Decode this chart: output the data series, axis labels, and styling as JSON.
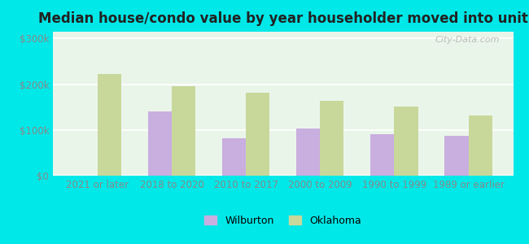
{
  "title": "Median house/condo value by year householder moved into unit",
  "categories": [
    "2021 or later",
    "2018 to 2020",
    "2010 to 2017",
    "2000 to 2009",
    "1990 to 1999",
    "1989 or earlier"
  ],
  "wilburton": [
    0,
    140000,
    82000,
    103000,
    90000,
    88000
  ],
  "oklahoma": [
    222000,
    196000,
    182000,
    163000,
    152000,
    132000
  ],
  "wilburton_color": "#c9aee0",
  "oklahoma_color": "#c8d89a",
  "figure_bg": "#00e8e8",
  "plot_bg": "#eaf5ea",
  "yticks": [
    0,
    100000,
    200000,
    300000
  ],
  "ytick_labels": [
    "$0",
    "$100k",
    "$200k",
    "$300k"
  ],
  "ylim": [
    0,
    315000
  ],
  "bar_width": 0.32,
  "watermark": "City-Data.com",
  "legend_labels": [
    "Wilburton",
    "Oklahoma"
  ],
  "title_fontsize": 12,
  "tick_fontsize": 8.5,
  "legend_fontsize": 9
}
